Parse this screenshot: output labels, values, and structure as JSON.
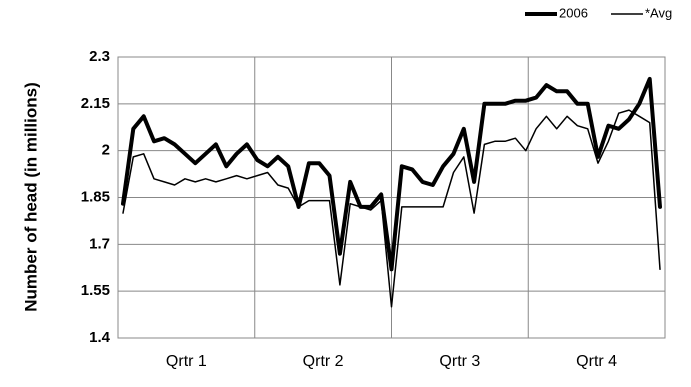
{
  "chart_data": {
    "type": "line",
    "y_axis_label": "Number of head (in millions)",
    "x_axis_labels": [
      "Qrtr 1",
      "Qrtr 2",
      "Qrtr 3",
      "Qrtr 4"
    ],
    "series": [
      {
        "name": "2006",
        "color": "#000000",
        "line_width": 4,
        "values": [
          1.83,
          2.07,
          2.11,
          2.03,
          2.04,
          2.02,
          1.99,
          1.96,
          1.99,
          2.02,
          1.95,
          1.99,
          2.02,
          1.97,
          1.95,
          1.98,
          1.95,
          1.82,
          1.96,
          1.96,
          1.92,
          1.67,
          1.9,
          1.82,
          1.82,
          1.86,
          1.62,
          1.95,
          1.94,
          1.9,
          1.89,
          1.95,
          1.99,
          2.07,
          1.9,
          2.15,
          2.15,
          2.15,
          2.16,
          2.16,
          2.17,
          2.21,
          2.19,
          2.19,
          2.15,
          2.15,
          1.98,
          2.08,
          2.07,
          2.1,
          2.15,
          2.23,
          1.82
        ]
      },
      {
        "name": "*Avg",
        "color": "#000000",
        "line_width": 1.5,
        "values": [
          1.8,
          1.98,
          1.99,
          1.91,
          1.9,
          1.89,
          1.91,
          1.9,
          1.91,
          1.9,
          1.91,
          1.92,
          1.91,
          1.92,
          1.93,
          1.89,
          1.88,
          1.82,
          1.84,
          1.84,
          1.84,
          1.57,
          1.83,
          1.82,
          1.81,
          1.84,
          1.5,
          1.82,
          1.82,
          1.82,
          1.82,
          1.82,
          1.93,
          1.98,
          1.8,
          2.02,
          2.03,
          2.03,
          2.04,
          2,
          2.07,
          2.11,
          2.07,
          2.11,
          2.08,
          2.07,
          1.96,
          2.03,
          2.12,
          2.13,
          2.11,
          2.09,
          1.62
        ]
      }
    ],
    "ylim": [
      1.4,
      2.3
    ],
    "yticks": [
      1.4,
      1.55,
      1.7,
      1.85,
      2,
      2.15,
      2.3
    ],
    "grid": true,
    "legend": "top-right"
  }
}
